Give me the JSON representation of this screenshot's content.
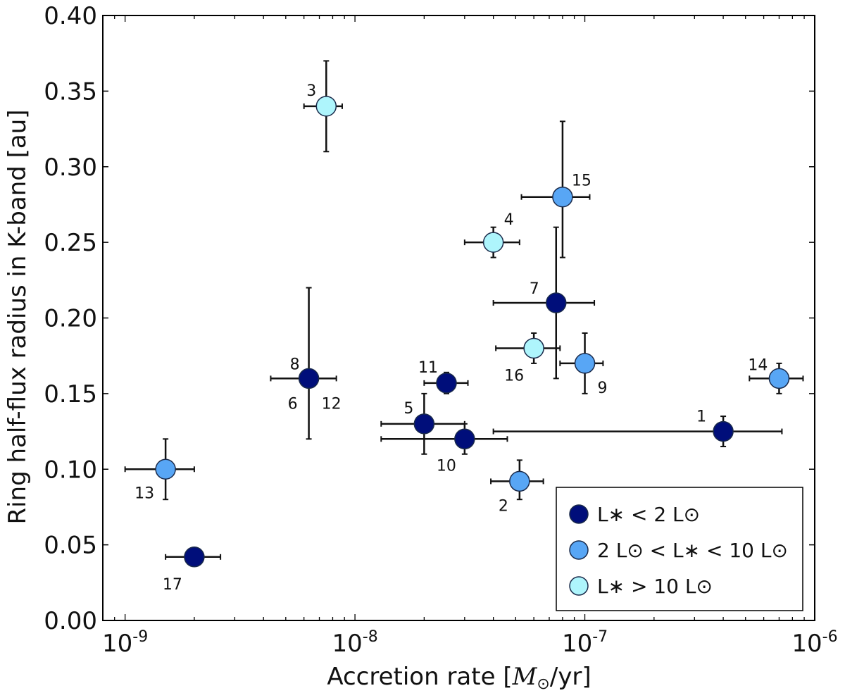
{
  "chart_data": {
    "type": "scatter",
    "xscale": "log",
    "xlabel": "Accretion rate [M_⊙/yr]",
    "xlabel_prefix": "Accretion rate [",
    "xlabel_math": "M",
    "xlabel_math_sub": "⊙",
    "xlabel_suffix": "/yr]",
    "ylabel": "Ring half-flux radius in K-band [au]",
    "xlim": [
      8e-10,
      1e-06
    ],
    "ylim": [
      0,
      0.4
    ],
    "xticks": [
      {
        "base": "10",
        "exp": "-9"
      },
      {
        "base": "10",
        "exp": "-8"
      },
      {
        "base": "10",
        "exp": "-7"
      },
      {
        "base": "10",
        "exp": "-6"
      }
    ],
    "yticks": [
      "0.00",
      "0.05",
      "0.10",
      "0.15",
      "0.20",
      "0.25",
      "0.30",
      "0.35",
      "0.40"
    ],
    "legend": {
      "position": "bottom-right",
      "entries": [
        {
          "label": "L∗ < 2 L⊙",
          "color": "#000e7a"
        },
        {
          "label": "2 L⊙ < L∗ < 10 L⊙",
          "color": "#58a6f5"
        },
        {
          "label": "L∗ > 10 L⊙",
          "color": "#aef5fc"
        }
      ]
    },
    "series": [
      {
        "name": "L∗ < 2 L⊙",
        "color": "#000e7a",
        "points": [
          {
            "id": "1",
            "x": 4e-07,
            "y": 0.125,
            "xerr": [
              4e-08,
              7.2e-07
            ],
            "yerr": [
              0.115,
              0.135
            ]
          },
          {
            "id": "5",
            "x": 2e-08,
            "y": 0.13,
            "xerr": [
              1.3e-08,
              3e-08
            ],
            "yerr": [
              0.11,
              0.15
            ]
          },
          {
            "id": "7",
            "x": 7.5e-08,
            "y": 0.21,
            "xerr": [
              4e-08,
              1.1e-07
            ],
            "yerr": [
              0.16,
              0.26
            ]
          },
          {
            "id": "8",
            "x": 6.3e-09,
            "y": 0.16,
            "xerr": [
              4.3e-09,
              8.3e-09
            ],
            "yerr": [
              0.12,
              0.22
            ]
          },
          {
            "id": "10",
            "x": 3e-08,
            "y": 0.12,
            "xerr": [
              1.3e-08,
              4.6e-08
            ],
            "yerr": [
              0.11,
              0.13
            ]
          },
          {
            "id": "11",
            "x": 2.5e-08,
            "y": 0.157,
            "xerr": [
              2e-08,
              3.1e-08
            ],
            "yerr": [
              0.15,
              0.164
            ]
          },
          {
            "id": "17",
            "x": 2e-09,
            "y": 0.042,
            "xerr": [
              1.5e-09,
              2.6e-09
            ],
            "yerr": [
              0.042,
              0.042
            ]
          }
        ]
      },
      {
        "name": "2 L⊙ < L∗ < 10 L⊙",
        "color": "#58a6f5",
        "points": [
          {
            "id": "2",
            "x": 5.2e-08,
            "y": 0.092,
            "xerr": [
              3.9e-08,
              6.6e-08
            ],
            "yerr": [
              0.08,
              0.106
            ]
          },
          {
            "id": "9",
            "x": 1e-07,
            "y": 0.17,
            "xerr": [
              7.8e-08,
              1.2e-07
            ],
            "yerr": [
              0.15,
              0.19
            ]
          },
          {
            "id": "13",
            "x": 1.5e-09,
            "y": 0.1,
            "xerr": [
              1e-09,
              2e-09
            ],
            "yerr": [
              0.08,
              0.12
            ]
          },
          {
            "id": "14",
            "x": 7e-07,
            "y": 0.16,
            "xerr": [
              5.2e-07,
              8.9e-07
            ],
            "yerr": [
              0.15,
              0.17
            ]
          },
          {
            "id": "15",
            "x": 8e-08,
            "y": 0.28,
            "xerr": [
              5.3e-08,
              1.05e-07
            ],
            "yerr": [
              0.24,
              0.33
            ]
          }
        ]
      },
      {
        "name": "L∗ > 10 L⊙",
        "color": "#aef5fc",
        "points": [
          {
            "id": "3",
            "x": 7.5e-09,
            "y": 0.34,
            "xerr": [
              6e-09,
              8.8e-09
            ],
            "yerr": [
              0.31,
              0.37
            ]
          },
          {
            "id": "4",
            "x": 4e-08,
            "y": 0.25,
            "xerr": [
              3e-08,
              5.2e-08
            ],
            "yerr": [
              0.24,
              0.26
            ]
          },
          {
            "id": "16",
            "x": 6e-08,
            "y": 0.18,
            "xerr": [
              4.1e-08,
              7.8e-08
            ],
            "yerr": [
              0.17,
              0.19
            ]
          }
        ]
      }
    ],
    "annotations": [
      "1",
      "2",
      "3",
      "4",
      "5",
      "6",
      "7",
      "8",
      "9",
      "10",
      "11",
      "12",
      "13",
      "14",
      "15",
      "16",
      "17"
    ]
  }
}
